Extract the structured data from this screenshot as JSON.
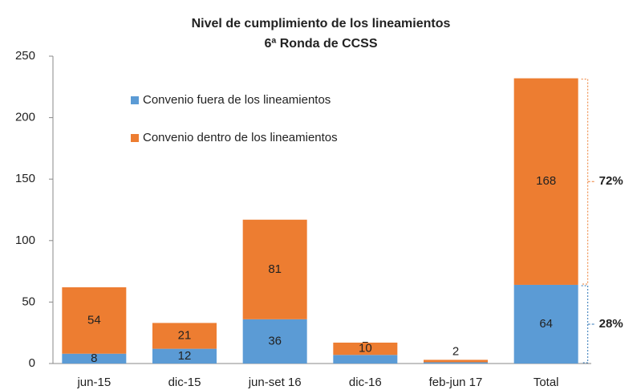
{
  "chart_data": {
    "type": "stacked_bar",
    "title": [
      "Nivel de cumplimiento de los lineamientos",
      "6ª Ronda de CCSS"
    ],
    "categories": [
      "jun-15",
      "dic-15",
      "jun-set 16",
      "dic-16",
      "feb-jun 17",
      "Total"
    ],
    "series": [
      {
        "name": "Convenio fuera de los lineamientos",
        "color": "#5b9bd5",
        "values": [
          8,
          12,
          36,
          7,
          1,
          64
        ]
      },
      {
        "name": "Convenio dentro de los lineamientos",
        "color": "#ed7d31",
        "values": [
          54,
          21,
          81,
          10,
          2,
          168
        ]
      }
    ],
    "ylim": [
      0,
      250
    ],
    "yticks": [
      0,
      50,
      100,
      150,
      200,
      250
    ],
    "annotations": [
      {
        "text": "72%",
        "color": "#ed7d31",
        "series": 1,
        "category": 5
      },
      {
        "text": "28%",
        "color": "#2e75b6",
        "series": 0,
        "category": 5
      }
    ]
  }
}
